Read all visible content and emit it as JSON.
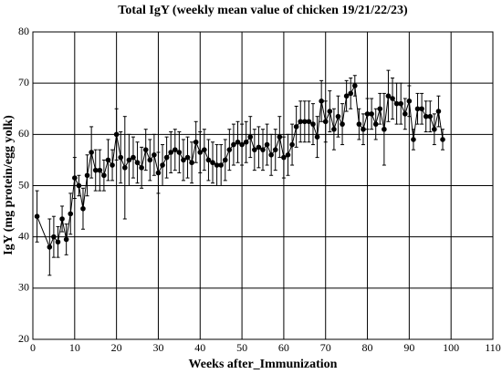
{
  "chart_data": {
    "type": "line",
    "title": "Total IgY (weekly mean value of chicken 19/21/22/23)",
    "xlabel": "Weeks after_Immunization",
    "ylabel": "IgY  (mg protein/egg yolk)",
    "xlim": [
      0,
      110
    ],
    "xticks": [
      0,
      10,
      20,
      30,
      40,
      50,
      60,
      70,
      80,
      90,
      100,
      110
    ],
    "ylim": [
      20,
      80
    ],
    "yticks": [
      20,
      30,
      40,
      50,
      60,
      70,
      80
    ],
    "grid": true,
    "series": [
      {
        "color": "#000000",
        "x": [
          1,
          4,
          5,
          6,
          7,
          8,
          9,
          10,
          11,
          12,
          13,
          14,
          15,
          16,
          17,
          18,
          19,
          20,
          21,
          22,
          23,
          24,
          25,
          26,
          27,
          28,
          29,
          30,
          31,
          32,
          33,
          34,
          35,
          36,
          37,
          38,
          39,
          40,
          41,
          42,
          43,
          44,
          45,
          46,
          47,
          48,
          49,
          50,
          51,
          52,
          53,
          54,
          55,
          56,
          57,
          58,
          59,
          60,
          61,
          62,
          63,
          64,
          65,
          66,
          67,
          68,
          69,
          70,
          71,
          72,
          73,
          74,
          75,
          76,
          77,
          78,
          79,
          80,
          81,
          82,
          83,
          84,
          85,
          86,
          87,
          88,
          89,
          90,
          91,
          92,
          93,
          94,
          95,
          96,
          97,
          98
        ],
        "values": [
          44,
          38,
          40,
          39,
          43.5,
          39.5,
          44.5,
          51.5,
          50,
          45.5,
          52,
          56.5,
          53,
          53,
          52,
          55,
          54,
          60,
          55.5,
          53.5,
          55,
          55.5,
          54.5,
          53.5,
          57,
          55,
          56,
          52.5,
          54,
          55.5,
          56.5,
          57,
          56.5,
          55,
          55.5,
          54.5,
          58.5,
          56.5,
          57,
          55,
          54.5,
          54,
          54,
          55,
          57,
          58,
          58.5,
          58,
          58.5,
          59.5,
          57,
          57.5,
          57,
          58,
          56,
          57,
          59.5,
          55.5,
          56,
          58,
          61.5,
          62.5,
          62.5,
          62.5,
          62,
          59.5,
          66.5,
          62.5,
          64.5,
          61,
          63.5,
          62,
          67.5,
          68,
          69.5,
          62,
          61,
          64,
          64,
          62,
          65,
          61,
          67.5,
          67,
          66,
          66,
          64,
          66.5,
          59,
          65,
          65,
          63.5,
          63.5,
          61,
          64.5,
          59
        ],
        "errors": [
          5,
          5.5,
          4,
          3,
          2.5,
          3,
          4,
          4,
          2,
          4,
          4,
          5,
          4,
          4,
          3,
          4,
          3,
          5,
          5,
          10,
          5,
          4,
          4,
          4,
          4,
          4,
          4,
          4,
          4,
          4,
          4,
          4,
          4,
          4,
          4,
          4,
          4,
          4,
          4,
          4,
          4,
          4,
          4,
          4,
          4,
          4,
          4,
          4,
          4,
          4,
          4,
          4,
          4,
          4,
          4,
          4,
          4,
          4,
          4,
          4,
          4,
          4,
          4,
          4,
          4,
          4,
          4,
          4,
          4,
          4,
          4,
          4,
          3,
          3,
          2,
          3,
          3,
          3,
          3,
          3,
          3,
          7,
          5,
          4,
          4,
          4,
          3,
          3,
          2,
          3,
          3,
          3,
          3,
          3,
          3,
          2
        ]
      }
    ]
  }
}
